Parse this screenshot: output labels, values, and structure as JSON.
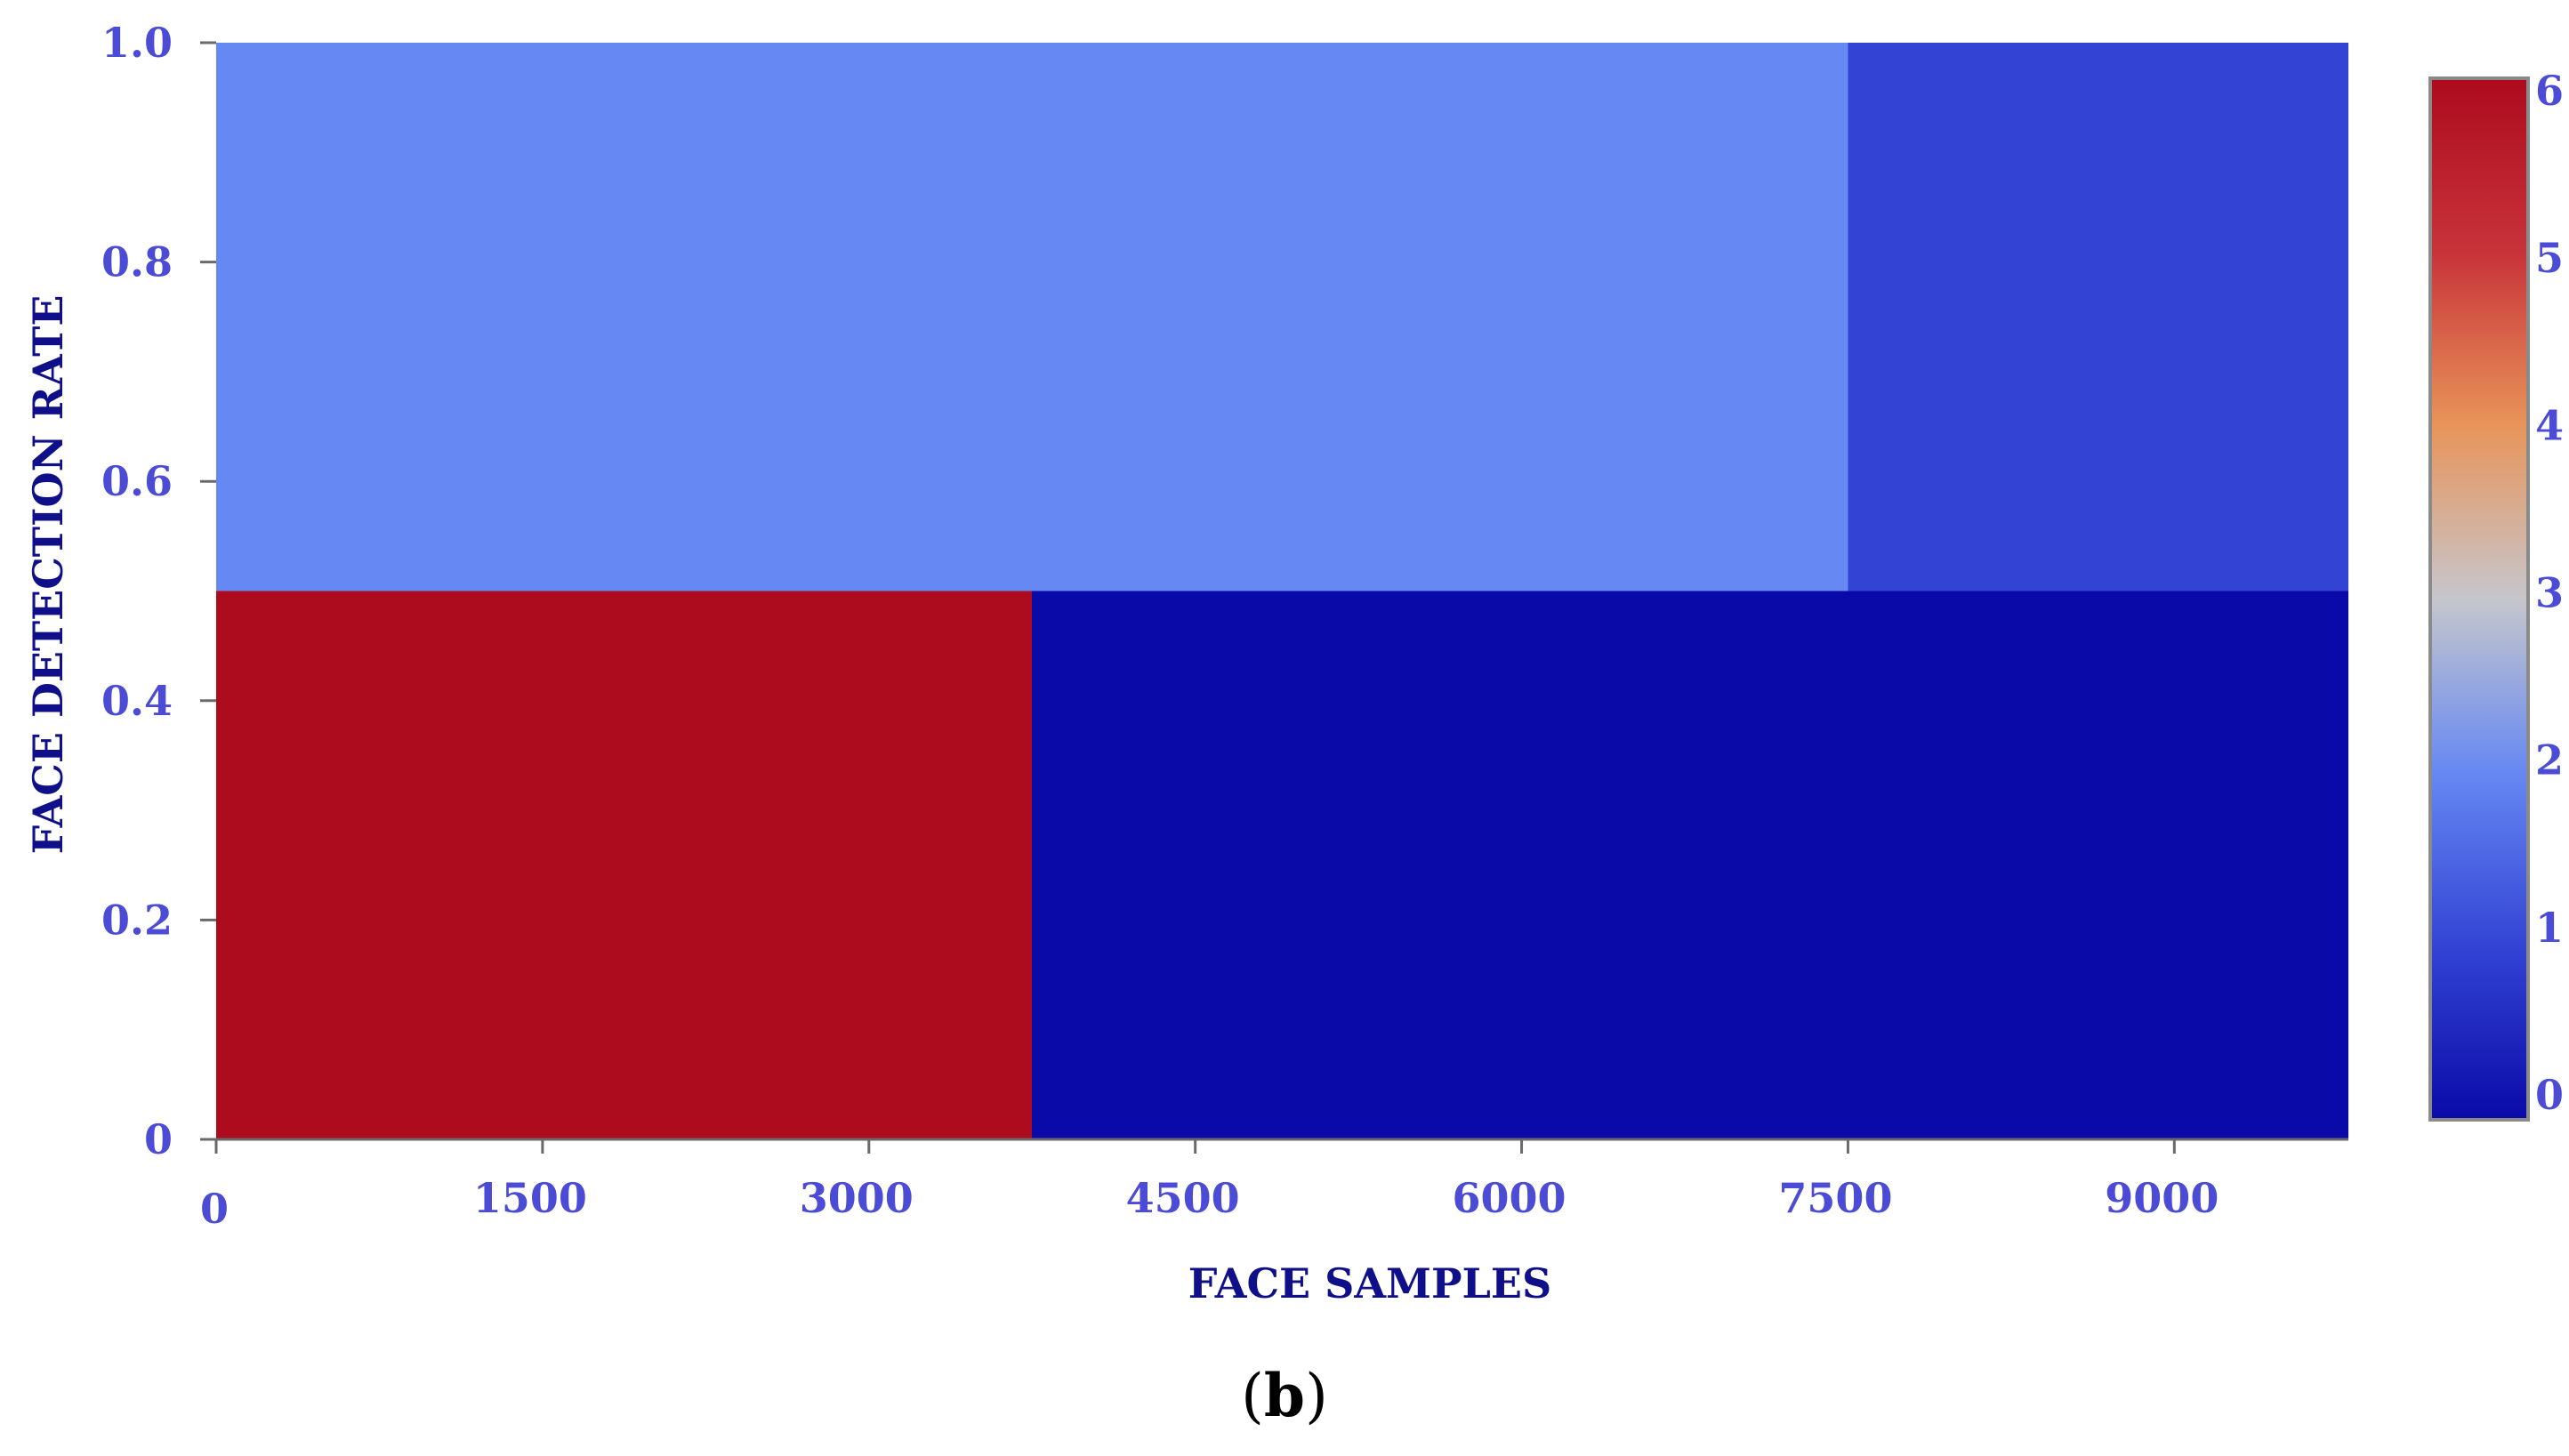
{
  "chart_data": {
    "type": "heatmap",
    "xlabel": "FACE SAMPLES",
    "ylabel": "FACE DETECTION RATE",
    "caption_open": "(",
    "caption_letter": "b",
    "caption_close": ")",
    "xlim": [
      0,
      9800
    ],
    "ylim": [
      0,
      1.0
    ],
    "x_ticks": [
      {
        "value": 0,
        "label": "0"
      },
      {
        "value": 1500,
        "label": "1500"
      },
      {
        "value": 3000,
        "label": "3000"
      },
      {
        "value": 4500,
        "label": "4500"
      },
      {
        "value": 6000,
        "label": "6000"
      },
      {
        "value": 7500,
        "label": "7500"
      },
      {
        "value": 9000,
        "label": "9000"
      }
    ],
    "y_ticks": [
      {
        "value": 0,
        "label": "0"
      },
      {
        "value": 0.2,
        "label": "0.2"
      },
      {
        "value": 0.4,
        "label": "0.4"
      },
      {
        "value": 0.6,
        "label": "0.6"
      },
      {
        "value": 0.8,
        "label": "0.8"
      },
      {
        "value": 1.0,
        "label": "1.0"
      }
    ],
    "cells": [
      {
        "x0": 0,
        "x1": 3750,
        "y0": 0,
        "y1": 0.5,
        "value": 6
      },
      {
        "x0": 3750,
        "x1": 9800,
        "y0": 0,
        "y1": 0.5,
        "value": 0
      },
      {
        "x0": 0,
        "x1": 7500,
        "y0": 0.5,
        "y1": 1.0,
        "value": 2
      },
      {
        "x0": 7500,
        "x1": 9800,
        "y0": 0.5,
        "y1": 1.0,
        "value": 1
      }
    ],
    "colorbar": {
      "min": 0,
      "max": 6,
      "ticks": [
        {
          "value": 0,
          "label": "0"
        },
        {
          "value": 1,
          "label": "1"
        },
        {
          "value": 2,
          "label": "2"
        },
        {
          "value": 3,
          "label": "3"
        },
        {
          "value": 4,
          "label": "4"
        },
        {
          "value": 5,
          "label": "5"
        },
        {
          "value": 6,
          "label": "6"
        }
      ],
      "colormap": "coolwarm",
      "stops": [
        "#0a0aa8",
        "#3344d4",
        "#6688f2",
        "#c6c6cc",
        "#e8945a",
        "#c8333a",
        "#ad0b1e"
      ],
      "tick_color": "#4b4bd6"
    },
    "grid": false
  }
}
